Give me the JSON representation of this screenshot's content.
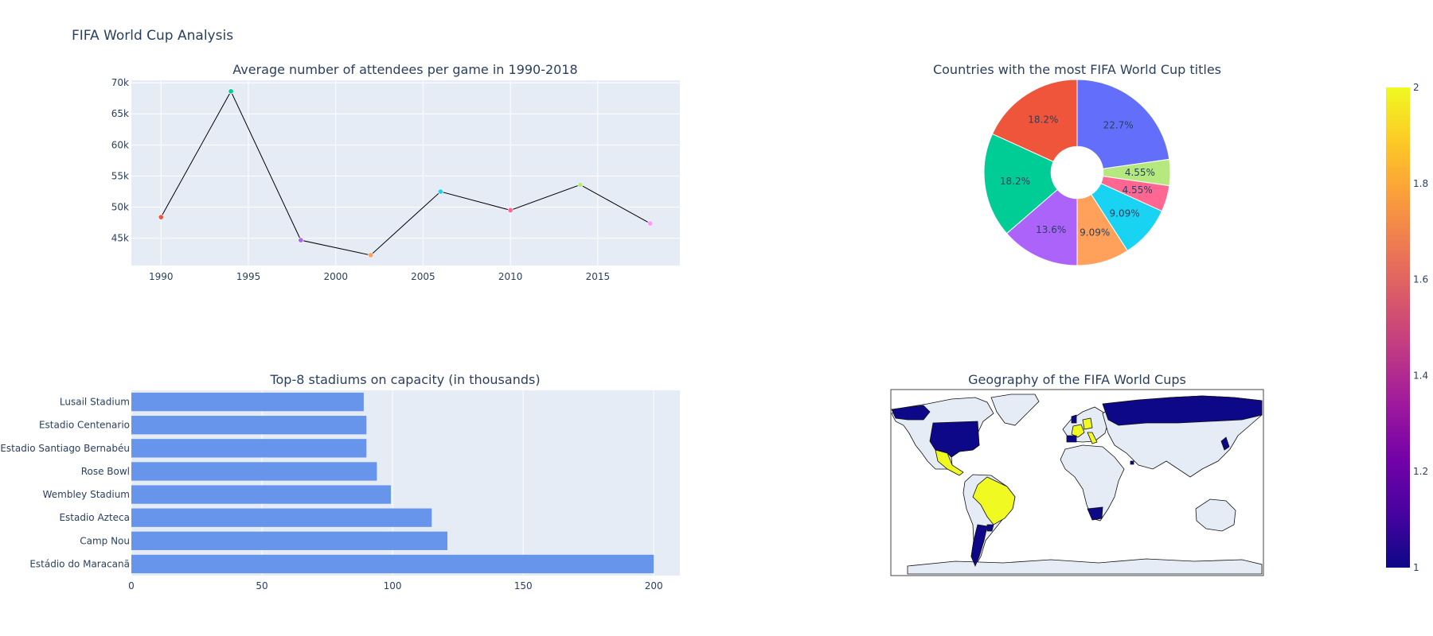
{
  "page": {
    "title": "FIFA World Cup Analysis"
  },
  "chart_data": [
    {
      "type": "line",
      "title": "Average number of attendees per game in 1990-2018",
      "x": [
        1990,
        1994,
        1998,
        2002,
        2006,
        2010,
        2014,
        2018
      ],
      "values": [
        48389,
        68626,
        44676,
        42269,
        52491,
        49499,
        53592,
        47371
      ],
      "x_ticks": [
        1990,
        1995,
        2000,
        2005,
        2010,
        2015
      ],
      "y_ticks": [
        45000,
        50000,
        55000,
        60000,
        65000,
        70000
      ],
      "y_tick_labels": [
        "45k",
        "50k",
        "55k",
        "60k",
        "65k",
        "70k"
      ],
      "xlim": [
        1988.3,
        2019.7
      ],
      "ylim": [
        40600,
        70400
      ],
      "line_color": "#000000",
      "marker_colors": [
        "#EF553B",
        "#00CC96",
        "#AB63FA",
        "#FFA15A",
        "#19D3F3",
        "#FF6692",
        "#B6E880",
        "#FF97FF"
      ],
      "grid": true
    },
    {
      "type": "pie",
      "title": "Countries with the most FIFA World Cup titles",
      "hole": 0.28,
      "slices": [
        {
          "label": "22.7%",
          "value": 5,
          "color": "#636efa"
        },
        {
          "label": "4.55%",
          "value": 1,
          "color": "#b6e880"
        },
        {
          "label": "4.55%",
          "value": 1,
          "color": "#ff6692"
        },
        {
          "label": "9.09%",
          "value": 2,
          "color": "#19d3f3"
        },
        {
          "label": "9.09%",
          "value": 2,
          "color": "#ffa15a"
        },
        {
          "label": "13.6%",
          "value": 3,
          "color": "#ab63fa"
        },
        {
          "label": "18.2%",
          "value": 4,
          "color": "#00cc96"
        },
        {
          "label": "18.2%",
          "value": 4,
          "color": "#ef553b"
        }
      ]
    },
    {
      "type": "bar",
      "orientation": "horizontal",
      "title": "Top-8 stadiums on capacity (in thousands)",
      "categories": [
        "Lusail Stadium",
        "Estadio Centenario",
        "Estadio Santiago Bernabéu",
        "Rose Bowl",
        "Wembley Stadium",
        "Estadio Azteca",
        "Camp Nou",
        "Estádio do Maracanã"
      ],
      "values": [
        88.966,
        90,
        90,
        94,
        99.354,
        115,
        121,
        200
      ],
      "x_ticks": [
        0,
        50,
        100,
        150,
        200
      ],
      "xlim": [
        0,
        210
      ],
      "bar_color": "#6895ec",
      "grid": true
    },
    {
      "type": "choropleth",
      "title": "Geography of the FIFA World Cups",
      "colorscale": "plasma",
      "range": [
        1,
        2
      ],
      "colorbar_ticks": [
        "2",
        "1.8",
        "1.6",
        "1.4",
        "1.2",
        "1"
      ],
      "colors": {
        "land": "#e5ecf6",
        "low": "#0d0887",
        "high": "#f0f921",
        "coast": "#111111"
      }
    }
  ]
}
